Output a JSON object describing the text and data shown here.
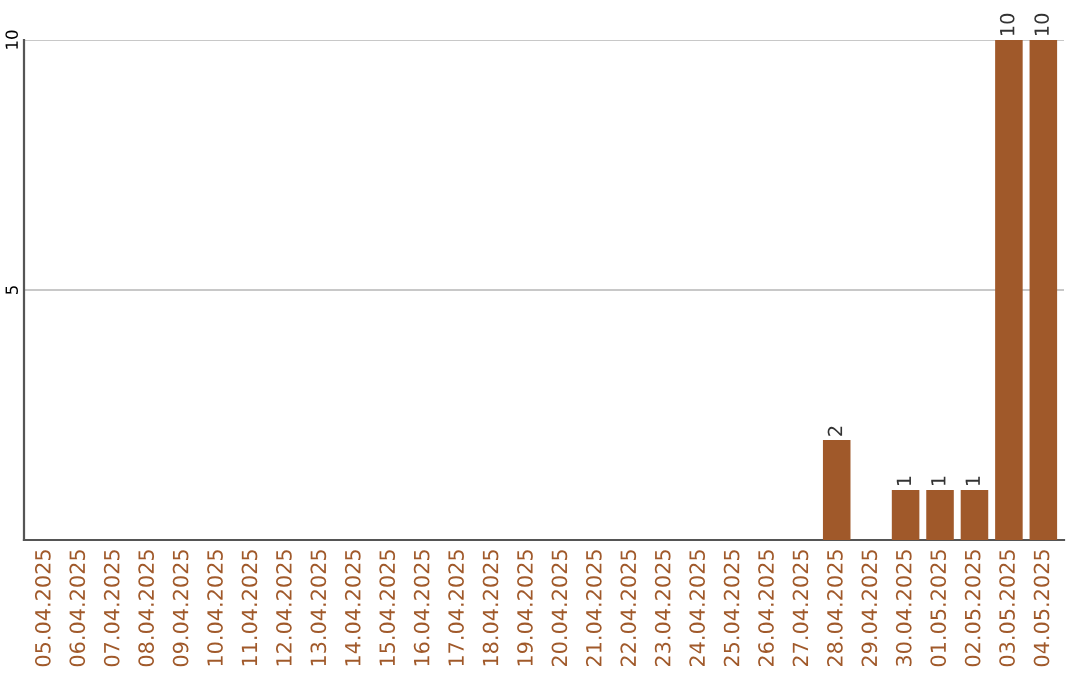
{
  "chart_data": {
    "type": "bar",
    "categories": [
      "05.04.2025",
      "06.04.2025",
      "07.04.2025",
      "08.04.2025",
      "09.04.2025",
      "10.04.2025",
      "11.04.2025",
      "12.04.2025",
      "13.04.2025",
      "14.04.2025",
      "15.04.2025",
      "16.04.2025",
      "17.04.2025",
      "18.04.2025",
      "19.04.2025",
      "20.04.2025",
      "21.04.2025",
      "22.04.2025",
      "23.04.2025",
      "24.04.2025",
      "25.04.2025",
      "26.04.2025",
      "27.04.2025",
      "28.04.2025",
      "29.04.2025",
      "30.04.2025",
      "01.05.2025",
      "02.05.2025",
      "03.05.2025",
      "04.05.2025"
    ],
    "values": [
      0,
      0,
      0,
      0,
      0,
      0,
      0,
      0,
      0,
      0,
      0,
      0,
      0,
      0,
      0,
      0,
      0,
      0,
      0,
      0,
      0,
      0,
      0,
      2,
      0,
      1,
      1,
      1,
      10,
      10
    ],
    "value_labels": [
      null,
      null,
      null,
      null,
      null,
      null,
      null,
      null,
      null,
      null,
      null,
      null,
      null,
      null,
      null,
      null,
      null,
      null,
      null,
      null,
      null,
      null,
      null,
      "2",
      null,
      "1",
      "1",
      "1",
      "10",
      "10"
    ],
    "color": "#a0592a",
    "ylim": [
      0,
      10
    ],
    "yticks": [
      5,
      10
    ],
    "grid": "y"
  }
}
